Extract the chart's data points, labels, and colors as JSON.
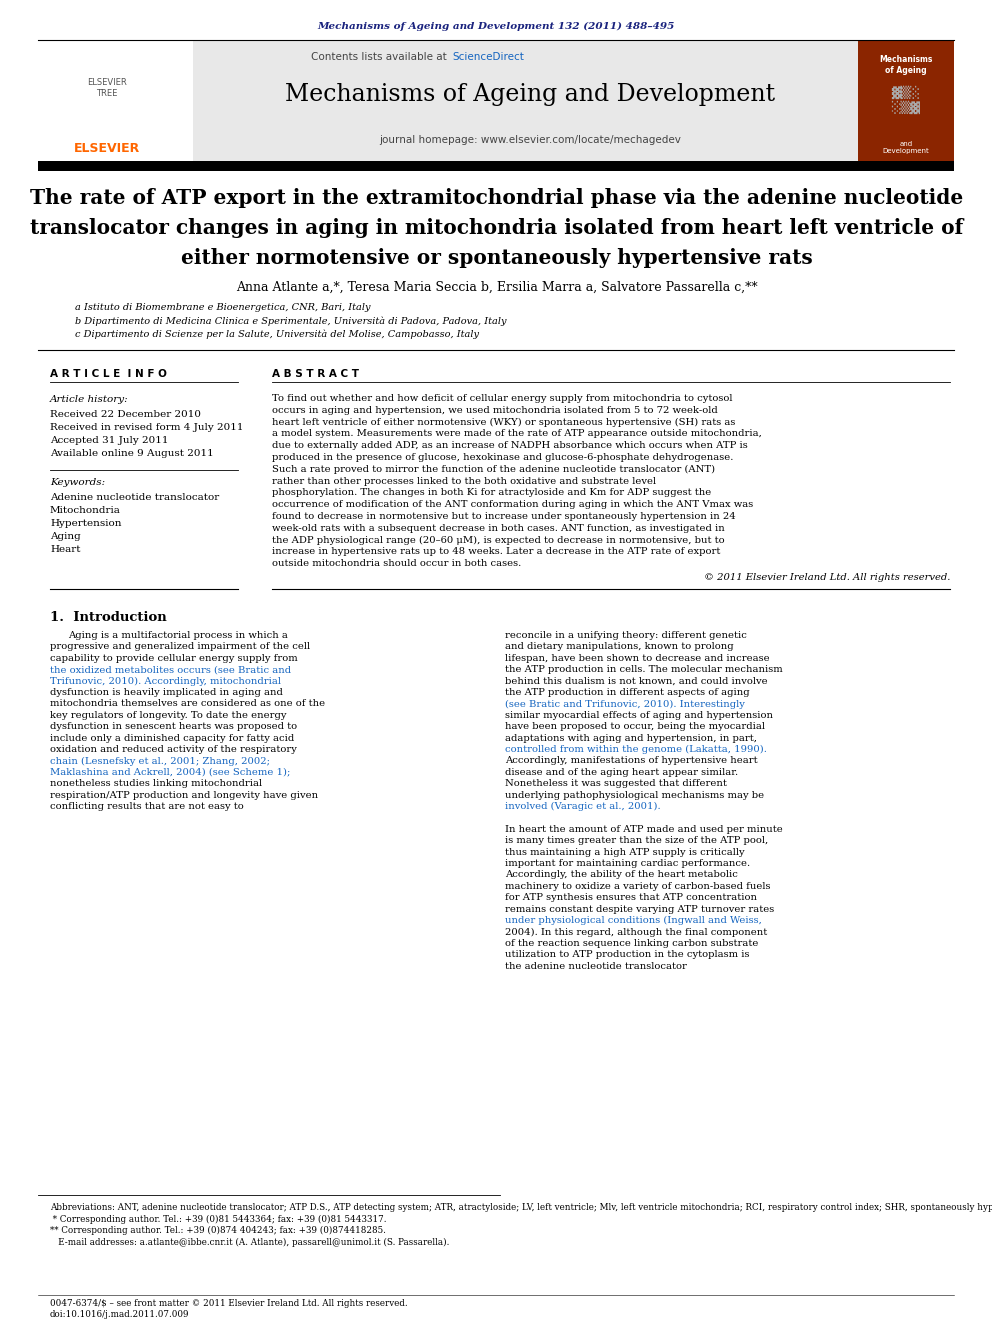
{
  "page_bg": "#ffffff",
  "journal_ref_color": "#1a237e",
  "journal_ref": "Mechanisms of Ageing and Development 132 (2011) 488–495",
  "header_bg": "#e8e8e8",
  "header_contents": "Contents lists available at",
  "sciencedirect_color": "#1565c0",
  "sciencedirect_text": "ScienceDirect",
  "journal_title": "Mechanisms of Ageing and Development",
  "journal_homepage": "journal homepage: www.elsevier.com/locate/mechagedev",
  "paper_title": "The rate of ATP export in the extramitochondrial phase via the adenine nucleotide\ntranslocator changes in aging in mitochondria isolated from heart left ventricle of\neither normotensive or spontaneously hypertensive rats",
  "authors": "Anna Atlante a,*, Teresa Maria Seccia b, Ersilia Marra a, Salvatore Passarella c,**",
  "affil_a": "a Istituto di Biomembrane e Bioenergetica, CNR, Bari, Italy",
  "affil_b": "b Dipartimento di Medicina Clinica e Sperimentale, Università di Padova, Padova, Italy",
  "affil_c": "c Dipartimento di Scienze per la Salute, Università del Molise, Campobasso, Italy",
  "article_info_header": "A R T I C L E  I N F O",
  "article_history_label": "Article history:",
  "article_history": "Received 22 December 2010\nReceived in revised form 4 July 2011\nAccepted 31 July 2011\nAvailable online 9 August 2011",
  "keywords_label": "Keywords:",
  "keywords": "Adenine nucleotide translocator\nMitochondria\nHypertension\nAging\nHeart",
  "abstract_header": "A B S T R A C T",
  "abstract_text": "To find out whether and how deficit of cellular energy supply from mitochondria to cytosol occurs in aging and hypertension, we used mitochondria isolated from 5 to 72 week-old heart left ventricle of either normotensive (WKY) or spontaneous hypertensive (SH) rats as a model system. Measurements were made of the rate of ATP appearance outside mitochondria, due to externally added ADP, as an increase of NADPH absorbance which occurs when ATP is produced in the presence of glucose, hexokinase and glucose-6-phosphate dehydrogenase. Such a rate proved to mirror the function of the adenine nucleotide translocator (ANT) rather than other processes linked to the both oxidative and substrate level phosphorylation. The changes in both Ki for atractyloside and Km for ADP suggest the occurrence of modification of the ANT conformation during aging in which the ANT Vmax was found to decrease in normotensive but to increase under spontaneously hypertension in 24 week-old rats with a subsequent decrease in both cases. ANT function, as investigated in the ADP physiological range (20–60 μM), is expected to decrease in normotensive, but to increase in hypertensive rats up to 48 weeks. Later a decrease in the ATP rate of export outside mitochondria should occur in both cases.",
  "copyright": "© 2011 Elsevier Ireland Ltd. All rights reserved.",
  "section1_header": "1.  Introduction",
  "intro_left": "Aging is a multifactorial process in which a progressive and generalized impairment of the cell capability to provide cellular energy supply from the oxidized metabolites occurs (see Bratic and Trifunovic, 2010). Accordingly, mitochondrial dysfunction is heavily implicated in aging and mitochondria themselves are considered as one of the key regulators of longevity. To date the energy dysfunction in senescent hearts was proposed to include only a diminished capacity for fatty acid oxidation and reduced activity of the respiratory chain (Lesnefsky et al., 2001; Zhang, 2002; Maklashina and Ackrell, 2004) (see Scheme 1); nonetheless studies linking mitochondrial respiration/ATP production and longevity have given conflicting results that are not easy to",
  "intro_right": "reconcile in a unifying theory: different genetic and dietary manipulations, known to prolong lifespan, have been shown to decrease and increase the ATP production in cells. The molecular mechanism behind this dualism is not known, and could involve the ATP production in different aspects of aging (see Bratic and Trifunovic, 2010). Interestingly similar myocardial effects of aging and hypertension have been proposed to occur, being the myocardial adaptations with aging and hypertension, in part, controlled from within the genome (Lakatta, 1990). Accordingly, manifestations of hypertensive heart disease and of the aging heart appear similar. Nonetheless it was suggested that different underlying pathophysiological mechanisms may be involved (Varagic et al., 2001).\n\nIn heart the amount of ATP made and used per minute is many times greater than the size of the ATP pool, thus maintaining a high ATP supply is critically important for maintaining cardiac performance. Accordingly, the ability of the heart metabolic machinery to oxidize a variety of carbon-based fuels for ATP synthesis ensures that ATP concentration remains constant despite varying ATP turnover rates under physiological conditions (Ingwall and Weiss, 2004). In this regard, although the final component of the reaction sequence linking carbon substrate utilization to ATP production in the cytoplasm is the adenine nucleotide translocator",
  "footnote_text": "Abbreviations: ANT, adenine nucleotide translocator; ATP D.S., ATP detecting system; ATR, atractyloside; LV, left ventricle; Mlv, left ventricle mitochondria; RCI, respiratory control index; SHR, spontaneously hypertensive rats; SUCC, succinate; WKY, Wistar–Kyoto rats.\n * Corresponding author. Tel.: +39 (0)81 5443364; fax: +39 (0)81 5443317.\n** Corresponding author. Tel.: +39 (0)874 404243; fax: +39 (0)874418285.\n   E-mail addresses: a.atlante@ibbe.cnr.it (A. Atlante), passarell@unimol.it (S. Passarella).",
  "issn_text": "0047-6374/$ – see front matter © 2011 Elsevier Ireland Ltd. All rights reserved.\ndoi:10.1016/j.mad.2011.07.009",
  "link_color": "#1565c0",
  "elsevier_orange": "#FF6600",
  "cover_bg": "#8B2500"
}
